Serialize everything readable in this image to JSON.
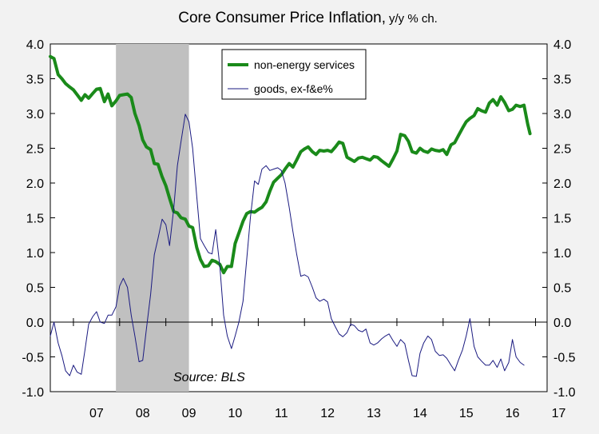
{
  "chart_data": {
    "type": "line",
    "title": "Core Consumer Price Inflation,",
    "subtitle": "y/y % ch.",
    "source": "Source: BLS",
    "x_axis": {
      "min": 2006.5,
      "max": 2017.25,
      "tick_labels": [
        "07",
        "08",
        "09",
        "10",
        "11",
        "12",
        "13",
        "14",
        "15",
        "16",
        "17"
      ]
    },
    "y_axis": {
      "min": -1.0,
      "max": 4.0,
      "step": 0.5,
      "tick_labels": [
        "-1.0",
        "-0.5",
        "0.0",
        "0.5",
        "1.0",
        "1.5",
        "2.0",
        "2.5",
        "3.0",
        "3.5",
        "4.0"
      ]
    },
    "recession": {
      "start": 2007.92,
      "end": 2009.5
    },
    "legend": {
      "placement": "top-center"
    },
    "series": [
      {
        "name": "non-energy services",
        "color": "#1a8a1a",
        "points": [
          [
            2006.5,
            3.82
          ],
          [
            2006.58,
            3.79
          ],
          [
            2006.67,
            3.56
          ],
          [
            2006.75,
            3.5
          ],
          [
            2006.83,
            3.43
          ],
          [
            2006.92,
            3.38
          ],
          [
            2007.0,
            3.34
          ],
          [
            2007.08,
            3.27
          ],
          [
            2007.17,
            3.19
          ],
          [
            2007.25,
            3.27
          ],
          [
            2007.33,
            3.22
          ],
          [
            2007.42,
            3.29
          ],
          [
            2007.5,
            3.35
          ],
          [
            2007.58,
            3.36
          ],
          [
            2007.67,
            3.17
          ],
          [
            2007.75,
            3.28
          ],
          [
            2007.83,
            3.11
          ],
          [
            2007.92,
            3.18
          ],
          [
            2008.0,
            3.26
          ],
          [
            2008.08,
            3.27
          ],
          [
            2008.17,
            3.28
          ],
          [
            2008.25,
            3.23
          ],
          [
            2008.33,
            3.0
          ],
          [
            2008.42,
            2.83
          ],
          [
            2008.5,
            2.62
          ],
          [
            2008.58,
            2.52
          ],
          [
            2008.67,
            2.48
          ],
          [
            2008.75,
            2.28
          ],
          [
            2008.83,
            2.27
          ],
          [
            2008.92,
            2.09
          ],
          [
            2009.0,
            1.96
          ],
          [
            2009.08,
            1.78
          ],
          [
            2009.17,
            1.59
          ],
          [
            2009.25,
            1.57
          ],
          [
            2009.33,
            1.5
          ],
          [
            2009.42,
            1.48
          ],
          [
            2009.5,
            1.38
          ],
          [
            2009.58,
            1.36
          ],
          [
            2009.67,
            1.07
          ],
          [
            2009.75,
            0.9
          ],
          [
            2009.83,
            0.8
          ],
          [
            2009.92,
            0.81
          ],
          [
            2010.0,
            0.89
          ],
          [
            2010.08,
            0.87
          ],
          [
            2010.17,
            0.83
          ],
          [
            2010.25,
            0.71
          ],
          [
            2010.33,
            0.8
          ],
          [
            2010.42,
            0.8
          ],
          [
            2010.5,
            1.13
          ],
          [
            2010.58,
            1.28
          ],
          [
            2010.67,
            1.45
          ],
          [
            2010.75,
            1.56
          ],
          [
            2010.83,
            1.59
          ],
          [
            2010.92,
            1.58
          ],
          [
            2011.0,
            1.62
          ],
          [
            2011.08,
            1.65
          ],
          [
            2011.17,
            1.73
          ],
          [
            2011.25,
            1.88
          ],
          [
            2011.33,
            2.01
          ],
          [
            2011.42,
            2.07
          ],
          [
            2011.5,
            2.12
          ],
          [
            2011.58,
            2.2
          ],
          [
            2011.67,
            2.28
          ],
          [
            2011.75,
            2.23
          ],
          [
            2011.83,
            2.33
          ],
          [
            2011.92,
            2.45
          ],
          [
            2012.0,
            2.49
          ],
          [
            2012.08,
            2.52
          ],
          [
            2012.17,
            2.45
          ],
          [
            2012.25,
            2.41
          ],
          [
            2012.33,
            2.47
          ],
          [
            2012.42,
            2.46
          ],
          [
            2012.5,
            2.47
          ],
          [
            2012.58,
            2.45
          ],
          [
            2012.67,
            2.52
          ],
          [
            2012.75,
            2.59
          ],
          [
            2012.83,
            2.57
          ],
          [
            2012.92,
            2.37
          ],
          [
            2013.0,
            2.34
          ],
          [
            2013.08,
            2.31
          ],
          [
            2013.17,
            2.36
          ],
          [
            2013.25,
            2.37
          ],
          [
            2013.33,
            2.35
          ],
          [
            2013.42,
            2.33
          ],
          [
            2013.5,
            2.38
          ],
          [
            2013.58,
            2.37
          ],
          [
            2013.67,
            2.32
          ],
          [
            2013.75,
            2.28
          ],
          [
            2013.83,
            2.24
          ],
          [
            2013.92,
            2.35
          ],
          [
            2014.0,
            2.46
          ],
          [
            2014.08,
            2.7
          ],
          [
            2014.17,
            2.68
          ],
          [
            2014.25,
            2.6
          ],
          [
            2014.33,
            2.45
          ],
          [
            2014.42,
            2.43
          ],
          [
            2014.5,
            2.5
          ],
          [
            2014.58,
            2.46
          ],
          [
            2014.67,
            2.44
          ],
          [
            2014.75,
            2.49
          ],
          [
            2014.83,
            2.47
          ],
          [
            2014.92,
            2.46
          ],
          [
            2015.0,
            2.48
          ],
          [
            2015.08,
            2.41
          ],
          [
            2015.17,
            2.55
          ],
          [
            2015.25,
            2.58
          ],
          [
            2015.33,
            2.68
          ],
          [
            2015.42,
            2.79
          ],
          [
            2015.5,
            2.88
          ],
          [
            2015.58,
            2.93
          ],
          [
            2015.67,
            2.97
          ],
          [
            2015.75,
            3.07
          ],
          [
            2015.83,
            3.04
          ],
          [
            2015.92,
            3.02
          ],
          [
            2016.0,
            3.15
          ],
          [
            2016.08,
            3.2
          ],
          [
            2016.17,
            3.12
          ],
          [
            2016.25,
            3.24
          ],
          [
            2016.33,
            3.16
          ],
          [
            2016.42,
            3.04
          ],
          [
            2016.5,
            3.06
          ],
          [
            2016.58,
            3.12
          ],
          [
            2016.67,
            3.1
          ],
          [
            2016.75,
            3.12
          ],
          [
            2016.83,
            2.85
          ],
          [
            2016.88,
            2.71
          ]
        ]
      },
      {
        "name": "goods, ex-f&e%",
        "color": "#1a1a80",
        "points": [
          [
            2006.5,
            -0.2
          ],
          [
            2006.58,
            0.0
          ],
          [
            2006.67,
            -0.3
          ],
          [
            2006.75,
            -0.48
          ],
          [
            2006.83,
            -0.7
          ],
          [
            2006.92,
            -0.77
          ],
          [
            2007.0,
            -0.62
          ],
          [
            2007.08,
            -0.72
          ],
          [
            2007.17,
            -0.75
          ],
          [
            2007.25,
            -0.4
          ],
          [
            2007.33,
            -0.03
          ],
          [
            2007.42,
            0.08
          ],
          [
            2007.5,
            0.15
          ],
          [
            2007.58,
            0.0
          ],
          [
            2007.67,
            -0.02
          ],
          [
            2007.75,
            0.1
          ],
          [
            2007.83,
            0.1
          ],
          [
            2007.92,
            0.22
          ],
          [
            2008.0,
            0.52
          ],
          [
            2008.08,
            0.63
          ],
          [
            2008.17,
            0.5
          ],
          [
            2008.25,
            0.1
          ],
          [
            2008.33,
            -0.2
          ],
          [
            2008.42,
            -0.57
          ],
          [
            2008.5,
            -0.55
          ],
          [
            2008.58,
            -0.1
          ],
          [
            2008.67,
            0.4
          ],
          [
            2008.75,
            0.97
          ],
          [
            2008.83,
            1.2
          ],
          [
            2008.92,
            1.48
          ],
          [
            2009.0,
            1.4
          ],
          [
            2009.08,
            1.1
          ],
          [
            2009.17,
            1.63
          ],
          [
            2009.25,
            2.25
          ],
          [
            2009.33,
            2.6
          ],
          [
            2009.42,
            2.99
          ],
          [
            2009.5,
            2.88
          ],
          [
            2009.58,
            2.5
          ],
          [
            2009.67,
            1.8
          ],
          [
            2009.75,
            1.2
          ],
          [
            2009.83,
            1.1
          ],
          [
            2009.92,
            1.0
          ],
          [
            2010.0,
            0.98
          ],
          [
            2010.08,
            1.33
          ],
          [
            2010.17,
            0.8
          ],
          [
            2010.25,
            0.1
          ],
          [
            2010.33,
            -0.2
          ],
          [
            2010.42,
            -0.38
          ],
          [
            2010.5,
            -0.2
          ],
          [
            2010.58,
            0.0
          ],
          [
            2010.67,
            0.3
          ],
          [
            2010.75,
            0.9
          ],
          [
            2010.83,
            1.5
          ],
          [
            2010.92,
            2.03
          ],
          [
            2011.0,
            1.98
          ],
          [
            2011.08,
            2.2
          ],
          [
            2011.17,
            2.25
          ],
          [
            2011.25,
            2.18
          ],
          [
            2011.33,
            2.2
          ],
          [
            2011.42,
            2.22
          ],
          [
            2011.5,
            2.18
          ],
          [
            2011.58,
            2.0
          ],
          [
            2011.67,
            1.65
          ],
          [
            2011.75,
            1.3
          ],
          [
            2011.83,
            0.98
          ],
          [
            2011.92,
            0.66
          ],
          [
            2012.0,
            0.68
          ],
          [
            2012.08,
            0.65
          ],
          [
            2012.17,
            0.5
          ],
          [
            2012.25,
            0.35
          ],
          [
            2012.33,
            0.3
          ],
          [
            2012.42,
            0.33
          ],
          [
            2012.5,
            0.29
          ],
          [
            2012.58,
            0.05
          ],
          [
            2012.67,
            -0.07
          ],
          [
            2012.75,
            -0.17
          ],
          [
            2012.83,
            -0.21
          ],
          [
            2012.92,
            -0.15
          ],
          [
            2013.0,
            -0.03
          ],
          [
            2013.08,
            -0.05
          ],
          [
            2013.17,
            -0.12
          ],
          [
            2013.25,
            -0.14
          ],
          [
            2013.33,
            -0.1
          ],
          [
            2013.42,
            -0.3
          ],
          [
            2013.5,
            -0.33
          ],
          [
            2013.58,
            -0.3
          ],
          [
            2013.67,
            -0.24
          ],
          [
            2013.75,
            -0.2
          ],
          [
            2013.83,
            -0.17
          ],
          [
            2013.92,
            -0.27
          ],
          [
            2014.0,
            -0.35
          ],
          [
            2014.08,
            -0.25
          ],
          [
            2014.17,
            -0.31
          ],
          [
            2014.25,
            -0.55
          ],
          [
            2014.33,
            -0.77
          ],
          [
            2014.42,
            -0.78
          ],
          [
            2014.5,
            -0.45
          ],
          [
            2014.58,
            -0.3
          ],
          [
            2014.67,
            -0.2
          ],
          [
            2014.75,
            -0.25
          ],
          [
            2014.83,
            -0.42
          ],
          [
            2014.92,
            -0.48
          ],
          [
            2015.0,
            -0.47
          ],
          [
            2015.08,
            -0.52
          ],
          [
            2015.17,
            -0.62
          ],
          [
            2015.25,
            -0.7
          ],
          [
            2015.33,
            -0.55
          ],
          [
            2015.42,
            -0.4
          ],
          [
            2015.5,
            -0.2
          ],
          [
            2015.58,
            0.05
          ],
          [
            2015.67,
            -0.35
          ],
          [
            2015.75,
            -0.5
          ],
          [
            2015.83,
            -0.56
          ],
          [
            2015.92,
            -0.62
          ],
          [
            2016.0,
            -0.62
          ],
          [
            2016.08,
            -0.55
          ],
          [
            2016.17,
            -0.65
          ],
          [
            2016.25,
            -0.53
          ],
          [
            2016.33,
            -0.7
          ],
          [
            2016.42,
            -0.58
          ],
          [
            2016.5,
            -0.25
          ],
          [
            2016.58,
            -0.5
          ],
          [
            2016.67,
            -0.58
          ],
          [
            2016.75,
            -0.62
          ]
        ]
      }
    ]
  }
}
